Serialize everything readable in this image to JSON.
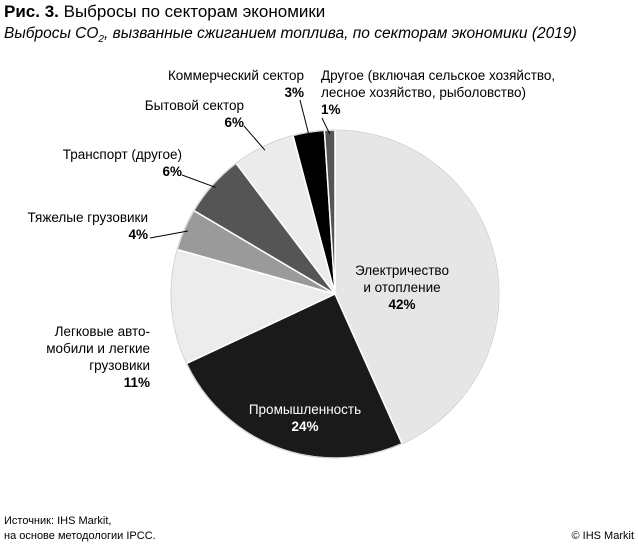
{
  "figure": {
    "number": "Рис. 3.",
    "title": "Выбросы по секторам экономики",
    "subtitle_pre": "Выбросы CO",
    "subtitle_sub": "2",
    "subtitle_post": ", вызванные сжиганием топлива, по секторам экономики (2019)"
  },
  "chart_data": {
    "type": "pie",
    "title": "Выбросы по секторам экономики",
    "slices": [
      {
        "name": "Электричество и отопление",
        "label_lines": [
          "Электричество",
          "и отопление"
        ],
        "pct_label": "42%",
        "value": 42,
        "color": "#e6e6e6"
      },
      {
        "name": "Промышленность",
        "label_lines": [
          "Промышленность"
        ],
        "pct_label": "24%",
        "value": 24,
        "color": "#1a1a1a"
      },
      {
        "name": "Легковые автомобили и легкие грузовики",
        "label_lines": [
          "Легковые авто-",
          "мобили и легкие",
          "грузовики"
        ],
        "pct_label": "11%",
        "value": 11,
        "color": "#ececec"
      },
      {
        "name": "Тяжелые грузовики",
        "label_lines": [
          "Тяжелые грузовики"
        ],
        "pct_label": "4%",
        "value": 4,
        "color": "#9a9a9a"
      },
      {
        "name": "Транспорт (другое)",
        "label_lines": [
          "Транспорт (другое)"
        ],
        "pct_label": "6%",
        "value": 6,
        "color": "#555555"
      },
      {
        "name": "Бытовой сектор",
        "label_lines": [
          "Бытовой сектор"
        ],
        "pct_label": "6%",
        "value": 6,
        "color": "#ebebeb"
      },
      {
        "name": "Коммерческий сектор",
        "label_lines": [
          "Коммерческий сектор"
        ],
        "pct_label": "3%",
        "value": 3,
        "color": "#000000"
      },
      {
        "name": "Другое (включая сельское хозяйство, лесное хозяйство, рыболовство)",
        "label_lines": [
          "Другое (включая сельское хозяйство,",
          "лесное хозяйство, рыболовство)"
        ],
        "pct_label": "1%",
        "value": 1,
        "color": "#555555"
      }
    ]
  },
  "source": {
    "line1": "Источник: IHS Markit,",
    "line2": "на основе методологии IPCC."
  },
  "copyright": "© IHS Markit"
}
